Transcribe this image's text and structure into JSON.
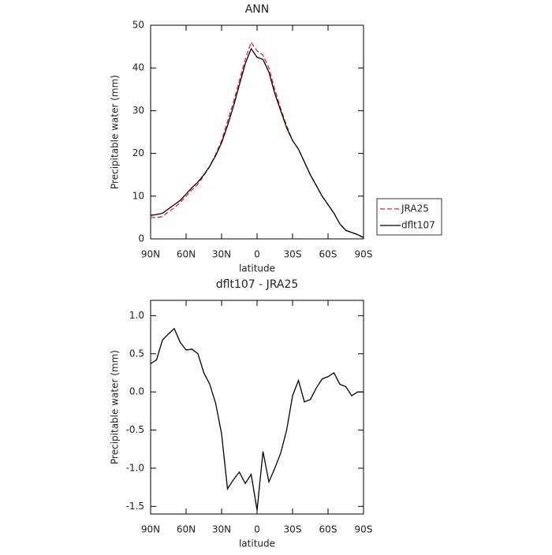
{
  "chart_data": [
    {
      "type": "line",
      "title": "ANN",
      "x_label": "latitude",
      "y_label": "Precipitable water (mm)",
      "x": [
        90,
        85,
        80,
        75,
        70,
        65,
        60,
        55,
        50,
        45,
        40,
        35,
        30,
        25,
        20,
        15,
        10,
        5,
        0,
        -5,
        -10,
        -15,
        -20,
        -25,
        -30,
        -35,
        -40,
        -45,
        -50,
        -55,
        -60,
        -65,
        -70,
        -75,
        -80,
        -85,
        -90
      ],
      "series": [
        {
          "name": "JRA25",
          "color": "#e8251f",
          "dashed": true,
          "values": [
            5,
            5,
            5.2,
            6.3,
            7.3,
            8.5,
            10,
            11.5,
            12.8,
            14.8,
            17,
            19.8,
            23,
            27.5,
            32,
            37,
            42,
            46,
            44,
            43,
            40,
            35,
            30.5,
            26.5,
            23,
            21,
            18,
            15,
            12.5,
            10,
            8,
            6,
            3.5,
            2,
            1.5,
            1,
            0.3
          ]
        },
        {
          "name": "dflt107",
          "color": "#000000",
          "dashed": false,
          "values": [
            5.5,
            5.7,
            6,
            7,
            8,
            9,
            10.5,
            12,
            13.3,
            15,
            17,
            19.5,
            22.5,
            26.5,
            31,
            36,
            41,
            44.5,
            42.5,
            42,
            39,
            34,
            30,
            26,
            23,
            21,
            18,
            15,
            12.5,
            10,
            8,
            6,
            3.5,
            2,
            1.5,
            1,
            0.3
          ]
        }
      ],
      "xlim": [
        90,
        -90
      ],
      "xticks": [
        {
          "value": 90,
          "label": "90N"
        },
        {
          "value": 60,
          "label": "60N"
        },
        {
          "value": 30,
          "label": "30N"
        },
        0,
        {
          "value": -30,
          "label": "30S"
        },
        {
          "value": -60,
          "label": "60S"
        },
        {
          "value": -90,
          "label": "90S"
        }
      ],
      "ylim": [
        0,
        50
      ],
      "yticks": [
        0,
        10,
        20,
        30,
        40,
        50
      ],
      "legend": "right"
    },
    {
      "type": "line",
      "title": "dflt107 - JRA25",
      "x_label": "latitude",
      "y_label": "Precipitable water (mm)",
      "x": [
        90,
        85,
        80,
        75,
        70,
        65,
        60,
        55,
        50,
        45,
        40,
        35,
        30,
        25,
        20,
        15,
        10,
        5,
        0,
        -5,
        -10,
        -15,
        -20,
        -25,
        -30,
        -35,
        -40,
        -45,
        -50,
        -55,
        -60,
        -65,
        -70,
        -75,
        -80,
        -85,
        -90
      ],
      "series": [
        {
          "color": "#000000",
          "dashed": false,
          "values": [
            0.37,
            0.42,
            0.68,
            0.76,
            0.83,
            0.65,
            0.55,
            0.56,
            0.5,
            0.25,
            0.1,
            -0.15,
            -0.55,
            -1.27,
            -1.15,
            -1.05,
            -1.2,
            -1.08,
            -1.55,
            -0.78,
            -1.18,
            -1.0,
            -0.8,
            -0.5,
            -0.05,
            0.15,
            -0.13,
            -0.1,
            0.05,
            0.17,
            0.2,
            0.25,
            0.1,
            0.07,
            -0.05,
            0,
            0
          ]
        }
      ],
      "xlim": [
        90,
        -90
      ],
      "xticks": [
        {
          "value": 90,
          "label": "90N"
        },
        {
          "value": 60,
          "label": "60N"
        },
        {
          "value": 30,
          "label": "30N"
        },
        0,
        {
          "value": -30,
          "label": "30S"
        },
        {
          "value": -60,
          "label": "60S"
        },
        {
          "value": -90,
          "label": "90S"
        }
      ],
      "ylim": [
        -1.6,
        1.2
      ],
      "yticks": [
        -1.5,
        {
          "value": -1,
          "label": "-1.0"
        },
        -0.5,
        {
          "value": 0,
          "label": "0.0"
        },
        0.5,
        {
          "value": 1,
          "label": "1.0"
        }
      ]
    }
  ]
}
